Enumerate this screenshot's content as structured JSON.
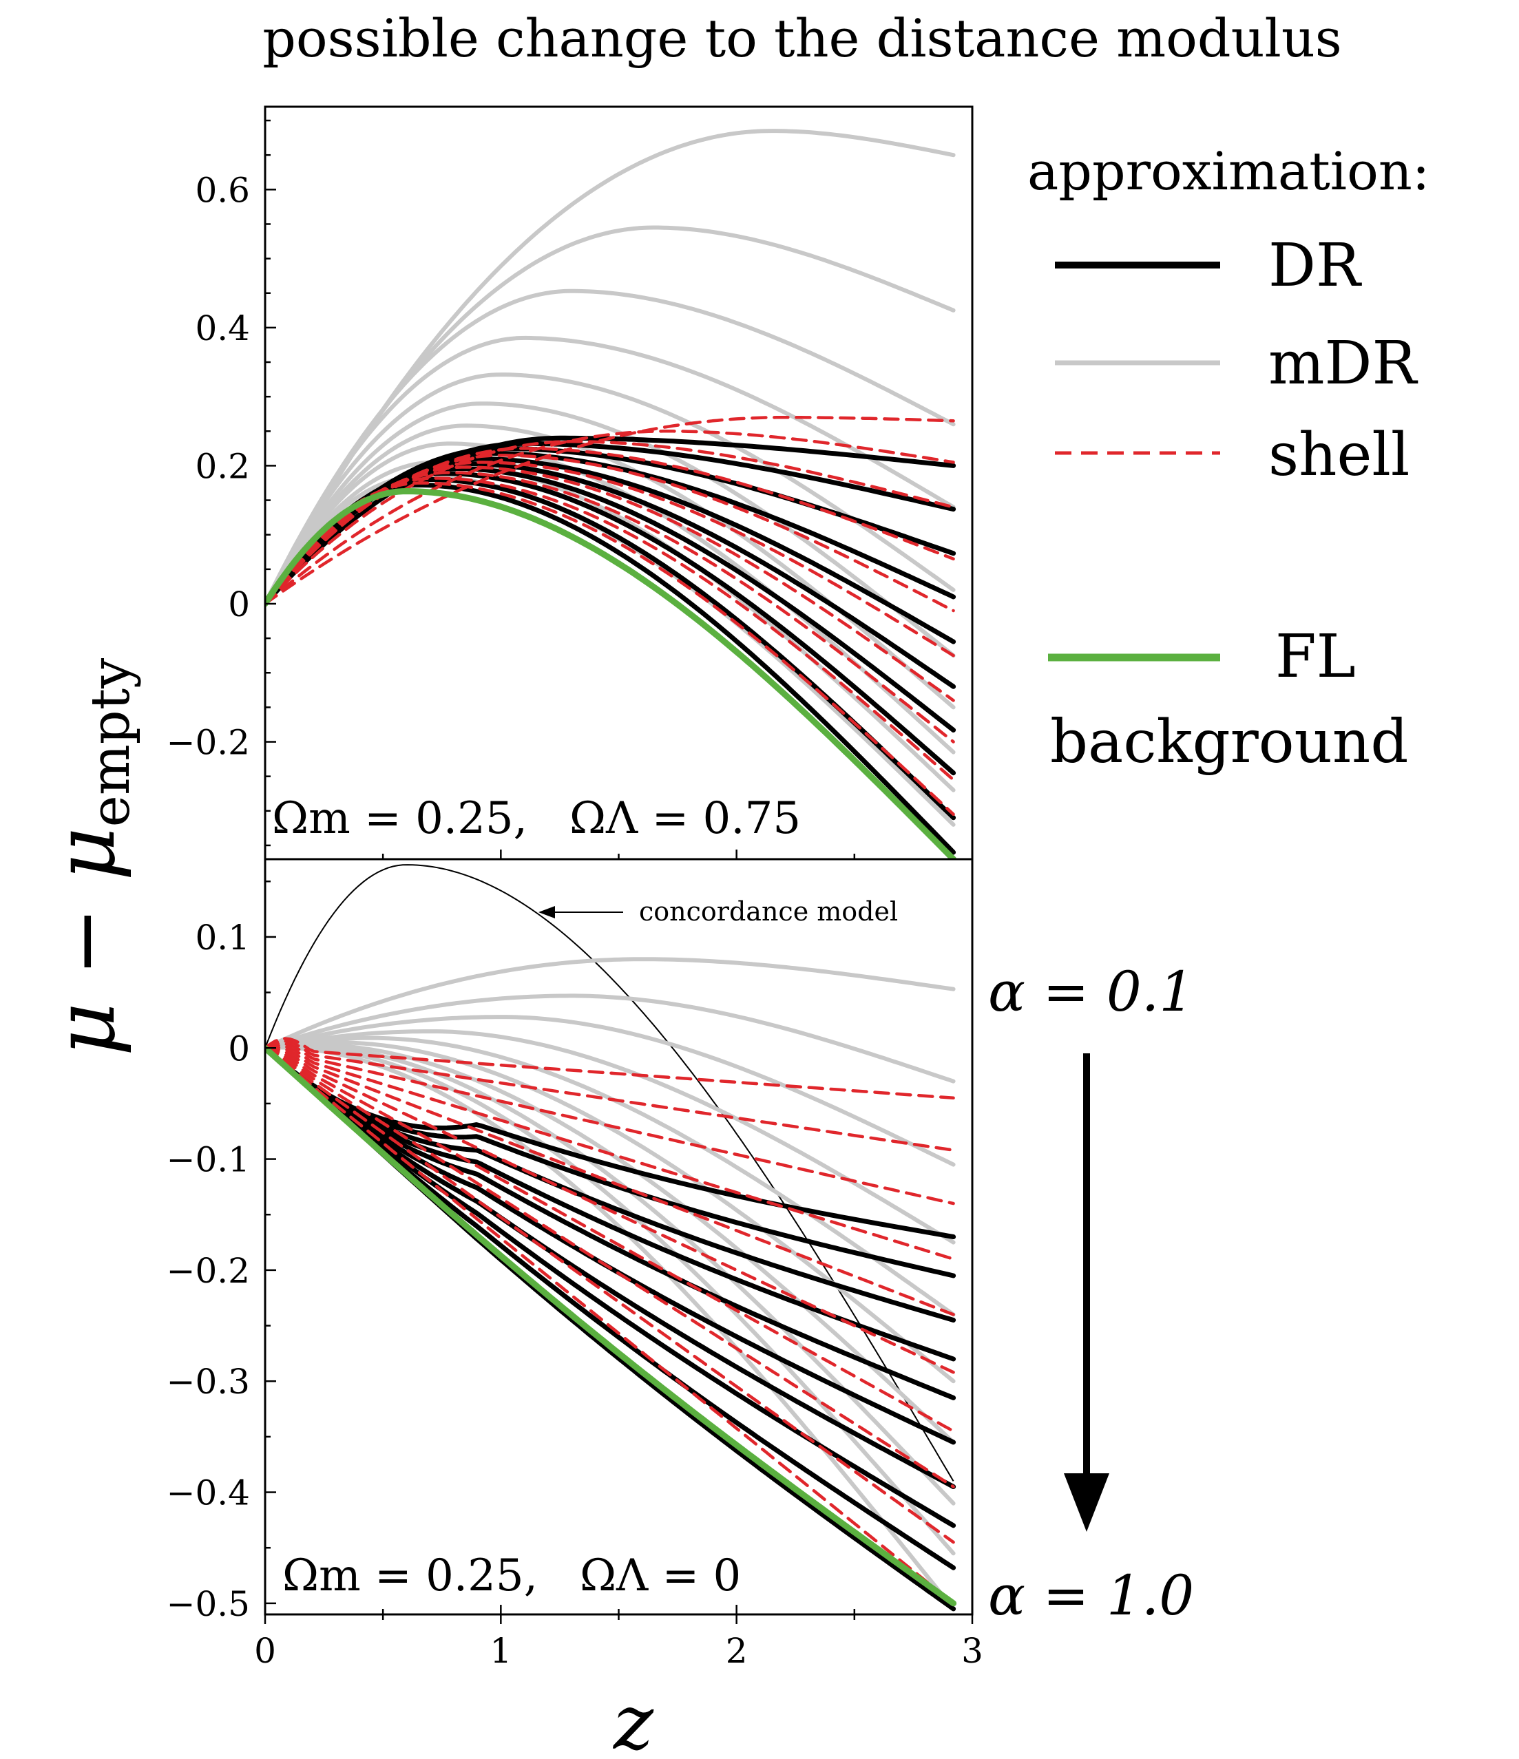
{
  "figure_title": "possible change to the distance modulus",
  "y_axis_label": {
    "main": "μ − μ",
    "sub": "empty"
  },
  "x_axis_label": "z",
  "legend": {
    "heading": "approximation:",
    "items": [
      {
        "label": "DR",
        "color": "#000000",
        "style": "solid"
      },
      {
        "label": "mDR",
        "color": "#c8c8c8",
        "style": "solid"
      },
      {
        "label": "shell",
        "color": "#e0262b",
        "style": "dashed"
      },
      {
        "label": "FL",
        "color": "#5bb040",
        "style": "solid"
      }
    ],
    "footer": "background"
  },
  "alpha_annotation": {
    "top": "α = 0.1",
    "bottom": "α = 1.0"
  },
  "concordance_label": "concordance model",
  "colors": {
    "DR": "#000000",
    "mDR": "#c8c8c8",
    "shell": "#e0262b",
    "FL": "#5bb040"
  },
  "chart_data": [
    {
      "type": "line",
      "panel": "top",
      "annotation": "Ωm = 0.25,   ΩΛ = 0.75",
      "xlim": [
        0,
        3
      ],
      "ylim": [
        -0.37,
        0.72
      ],
      "xticks": [
        0,
        1,
        2,
        3
      ],
      "xtick_labels": [
        "0",
        "1",
        "2",
        "3"
      ],
      "yticks": [
        -0.2,
        0,
        0.2,
        0.4,
        0.6
      ],
      "ytick_labels": [
        "−0.2",
        "0",
        "0.2",
        "0.4",
        "0.6"
      ],
      "series": {
        "FL": [
          {
            "name": "FL background",
            "y_peak": 0.163,
            "z_peak": 0.6,
            "y_end": -0.37
          }
        ],
        "mDR": [
          {
            "y_peak": 0.685,
            "z_peak": 2.15,
            "y_end": 0.65
          },
          {
            "y_peak": 0.545,
            "z_peak": 1.65,
            "y_end": 0.425
          },
          {
            "y_peak": 0.453,
            "z_peak": 1.3,
            "y_end": 0.26
          },
          {
            "y_peak": 0.385,
            "z_peak": 1.1,
            "y_end": 0.14
          },
          {
            "y_peak": 0.332,
            "z_peak": 1.0,
            "y_end": 0.02
          },
          {
            "y_peak": 0.29,
            "z_peak": 0.92,
            "y_end": -0.075
          },
          {
            "y_peak": 0.258,
            "z_peak": 0.85,
            "y_end": -0.15
          },
          {
            "y_peak": 0.232,
            "z_peak": 0.78,
            "y_end": -0.215
          },
          {
            "y_peak": 0.205,
            "z_peak": 0.72,
            "y_end": -0.27
          },
          {
            "y_peak": 0.185,
            "z_peak": 0.66,
            "y_end": -0.32
          }
        ],
        "shell": [
          {
            "y_peak": 0.27,
            "z_peak": 2.2,
            "y_end": 0.265
          },
          {
            "y_peak": 0.25,
            "z_peak": 1.7,
            "y_end": 0.205
          },
          {
            "y_peak": 0.235,
            "z_peak": 1.3,
            "y_end": 0.14
          },
          {
            "y_peak": 0.225,
            "z_peak": 1.1,
            "y_end": 0.065
          },
          {
            "y_peak": 0.215,
            "z_peak": 1.0,
            "y_end": -0.01
          },
          {
            "y_peak": 0.205,
            "z_peak": 0.92,
            "y_end": -0.075
          },
          {
            "y_peak": 0.198,
            "z_peak": 0.85,
            "y_end": -0.14
          },
          {
            "y_peak": 0.19,
            "z_peak": 0.78,
            "y_end": -0.2
          },
          {
            "y_peak": 0.182,
            "z_peak": 0.72,
            "y_end": -0.255
          },
          {
            "y_peak": 0.175,
            "z_peak": 0.66,
            "y_end": -0.305
          }
        ],
        "DR": [
          {
            "y_peak": 0.24,
            "z_peak": 1.25,
            "y_end": 0.2
          },
          {
            "y_peak": 0.232,
            "z_peak": 1.1,
            "y_end": 0.137
          },
          {
            "y_peak": 0.225,
            "z_peak": 1.0,
            "y_end": 0.073
          },
          {
            "y_peak": 0.218,
            "z_peak": 0.95,
            "y_end": 0.01
          },
          {
            "y_peak": 0.21,
            "z_peak": 0.9,
            "y_end": -0.055
          },
          {
            "y_peak": 0.203,
            "z_peak": 0.85,
            "y_end": -0.12
          },
          {
            "y_peak": 0.196,
            "z_peak": 0.8,
            "y_end": -0.183
          },
          {
            "y_peak": 0.189,
            "z_peak": 0.75,
            "y_end": -0.245
          },
          {
            "y_peak": 0.18,
            "z_peak": 0.7,
            "y_end": -0.31
          },
          {
            "y_peak": 0.172,
            "z_peak": 0.65,
            "y_end": -0.36
          }
        ]
      }
    },
    {
      "type": "line",
      "panel": "bottom",
      "annotation": "Ωm = 0.25,   ΩΛ = 0",
      "xlim": [
        0,
        3
      ],
      "ylim": [
        -0.51,
        0.17
      ],
      "xticks": [
        0,
        1,
        2,
        3
      ],
      "xtick_labels": [
        "0",
        "1",
        "2",
        "3"
      ],
      "yticks": [
        -0.5,
        -0.4,
        -0.3,
        -0.2,
        -0.1,
        0,
        0.1
      ],
      "ytick_labels": [
        "−0.5",
        "−0.4",
        "−0.3",
        "−0.2",
        "−0.1",
        "0",
        "0.1"
      ],
      "series": {
        "FL": [
          {
            "name": "FL background",
            "y_end": -0.5,
            "curvature": 0.018
          }
        ],
        "concordance": [
          {
            "name": "concordance model",
            "y_peak": 0.165,
            "z_peak": 0.6,
            "y_end": -0.39
          }
        ],
        "mDR": [
          {
            "y_peak": 0.08,
            "z_peak": 1.6,
            "y_end": 0.053
          },
          {
            "y_peak": 0.047,
            "z_peak": 1.3,
            "y_end": -0.03
          },
          {
            "y_peak": 0.028,
            "z_peak": 1.0,
            "y_end": -0.105
          },
          {
            "y_peak": 0.015,
            "z_peak": 0.7,
            "y_end": -0.175
          },
          {
            "y_peak": 0.009,
            "z_peak": 0.45,
            "y_end": -0.24
          },
          {
            "y_peak": 0.005,
            "z_peak": 0.3,
            "y_end": -0.3
          },
          {
            "y_peak": 0.003,
            "z_peak": 0.2,
            "y_end": -0.355
          },
          {
            "y_peak": 0.002,
            "z_peak": 0.15,
            "y_end": -0.41
          },
          {
            "y_peak": 0.001,
            "z_peak": 0.1,
            "y_end": -0.455
          },
          {
            "y_peak": 0.0005,
            "z_peak": 0.05,
            "y_end": -0.505
          }
        ],
        "shell": [
          {
            "y_end": -0.045
          },
          {
            "y_end": -0.092
          },
          {
            "y_end": -0.14
          },
          {
            "y_end": -0.19
          },
          {
            "y_end": -0.24
          },
          {
            "y_end": -0.292
          },
          {
            "y_end": -0.345
          },
          {
            "y_end": -0.395
          },
          {
            "y_end": -0.445
          },
          {
            "y_end": -0.5
          }
        ],
        "DR": [
          {
            "y_end": -0.17
          },
          {
            "y_end": -0.205
          },
          {
            "y_end": -0.245
          },
          {
            "y_end": -0.28
          },
          {
            "y_end": -0.315
          },
          {
            "y_end": -0.355
          },
          {
            "y_end": -0.395
          },
          {
            "y_end": -0.43
          },
          {
            "y_end": -0.468
          },
          {
            "y_end": -0.505
          }
        ]
      }
    }
  ]
}
